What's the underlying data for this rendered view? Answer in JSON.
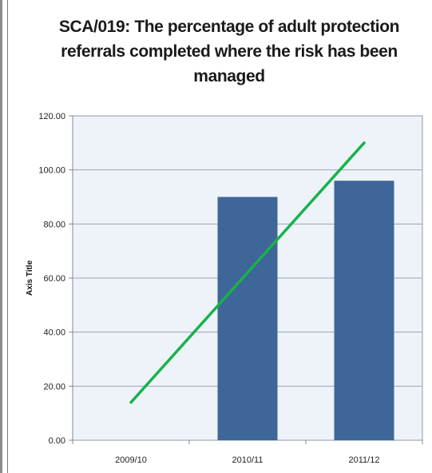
{
  "chart_data": {
    "type": "bar",
    "title": "SCA/019: The percentage of adult protection referrals completed where the risk has been managed",
    "xlabel": "",
    "ylabel": "Axis Title",
    "categories": [
      "2009/10",
      "2010/11",
      "2011/12"
    ],
    "series": [
      {
        "type": "bar",
        "values": [
          null,
          90.0,
          96.0
        ]
      },
      {
        "type": "line",
        "values": [
          14.0,
          62.0,
          110.0
        ]
      }
    ],
    "ylim": [
      0,
      120
    ],
    "yticks": [
      "0.00",
      "20.00",
      "40.00",
      "60.00",
      "80.00",
      "100.00",
      "120.00"
    ],
    "grid": true,
    "colors": {
      "bar": "#3e6699",
      "trend": "#16b34a",
      "plot_bg": "#eef3f9",
      "grid": "#9ba5b3"
    }
  }
}
